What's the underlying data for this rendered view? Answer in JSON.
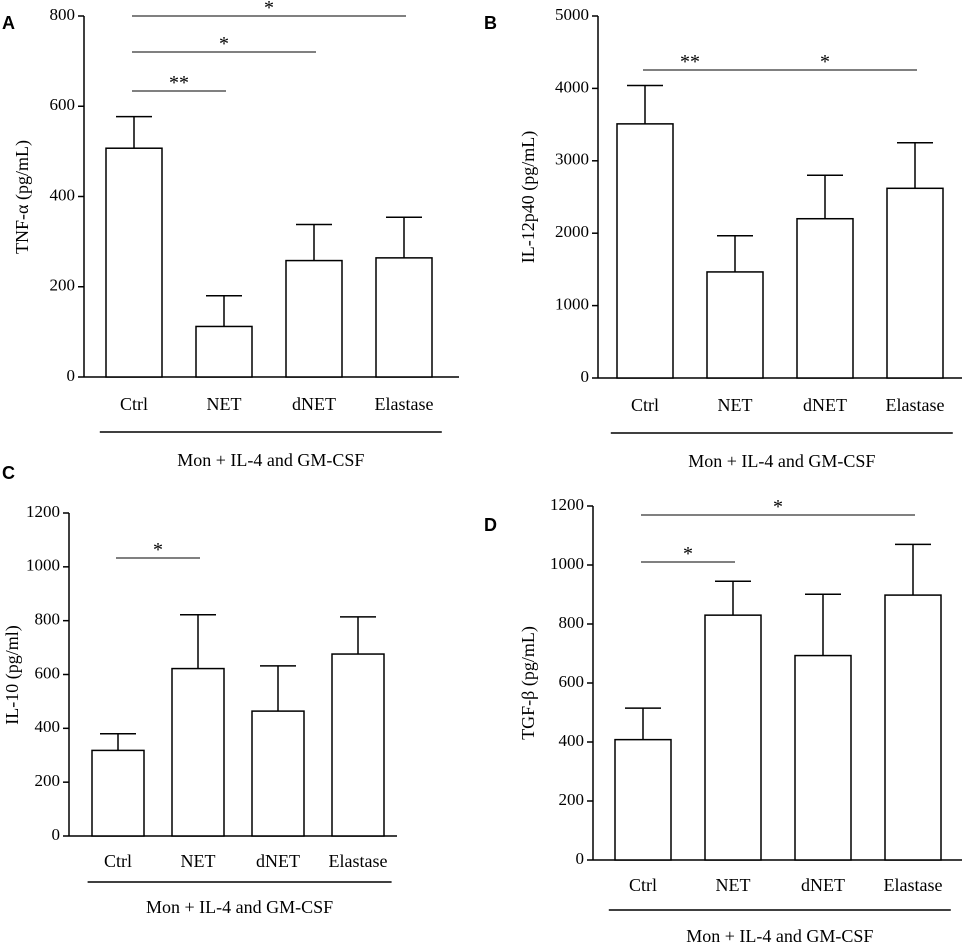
{
  "chart_data": [
    {
      "type": "bar",
      "panel": "A",
      "ylabel": "TNF-α (pg/mL)",
      "group_label": "Mon + IL-4 and GM-CSF",
      "categories": [
        "Ctrl",
        "NET",
        "dNET",
        "Elastase"
      ],
      "values": [
        507,
        112,
        258,
        264
      ],
      "error": [
        70,
        68,
        80,
        90
      ],
      "ylim": [
        0,
        800
      ],
      "yticks": [
        "0",
        "200",
        "400",
        "600",
        "800"
      ],
      "significance": [
        {
          "from": 0,
          "to": 1,
          "label": "**"
        },
        {
          "from": 0,
          "to": 2,
          "label": "*"
        },
        {
          "from": 0,
          "to": 3,
          "label": "*"
        }
      ]
    },
    {
      "type": "bar",
      "panel": "B",
      "ylabel": "IL-12p40 (pg/mL)",
      "group_label": "Mon + IL-4 and GM-CSF",
      "categories": [
        "Ctrl",
        "NET",
        "dNET",
        "Elastase"
      ],
      "values": [
        3510,
        1465,
        2200,
        2620
      ],
      "error": [
        530,
        500,
        600,
        630
      ],
      "ylim": [
        0,
        5000
      ],
      "yticks": [
        "0",
        "1000",
        "2000",
        "3000",
        "4000",
        "5000"
      ],
      "significance": [
        {
          "from": 0,
          "to": 1,
          "label": "**"
        },
        {
          "from": 1,
          "to": 3,
          "label": "*"
        }
      ]
    },
    {
      "type": "bar",
      "panel": "C",
      "ylabel": "IL-10 (pg/ml)",
      "group_label": "Mon + IL-4 and GM-CSF",
      "categories": [
        "Ctrl",
        "NET",
        "dNET",
        "Elastase"
      ],
      "values": [
        318,
        622,
        464,
        676
      ],
      "error": [
        62,
        200,
        168,
        138
      ],
      "ylim": [
        0,
        1200
      ],
      "yticks": [
        "0",
        "200",
        "400",
        "600",
        "800",
        "1000",
        "1200"
      ],
      "significance": [
        {
          "from": 0,
          "to": 1,
          "label": "*"
        }
      ]
    },
    {
      "type": "bar",
      "panel": "D",
      "ylabel": "TGF-β (pg/mL)",
      "group_label": "Mon + IL-4 and GM-CSF",
      "categories": [
        "Ctrl",
        "NET",
        "dNET",
        "Elastase"
      ],
      "values": [
        408,
        830,
        693,
        898
      ],
      "error": [
        107,
        115,
        208,
        172
      ],
      "ylim": [
        0,
        1200
      ],
      "yticks": [
        "0",
        "200",
        "400",
        "600",
        "800",
        "1000",
        "1200"
      ],
      "significance": [
        {
          "from": 0,
          "to": 1,
          "label": "*"
        },
        {
          "from": 0,
          "to": 3,
          "label": "*"
        }
      ]
    }
  ]
}
